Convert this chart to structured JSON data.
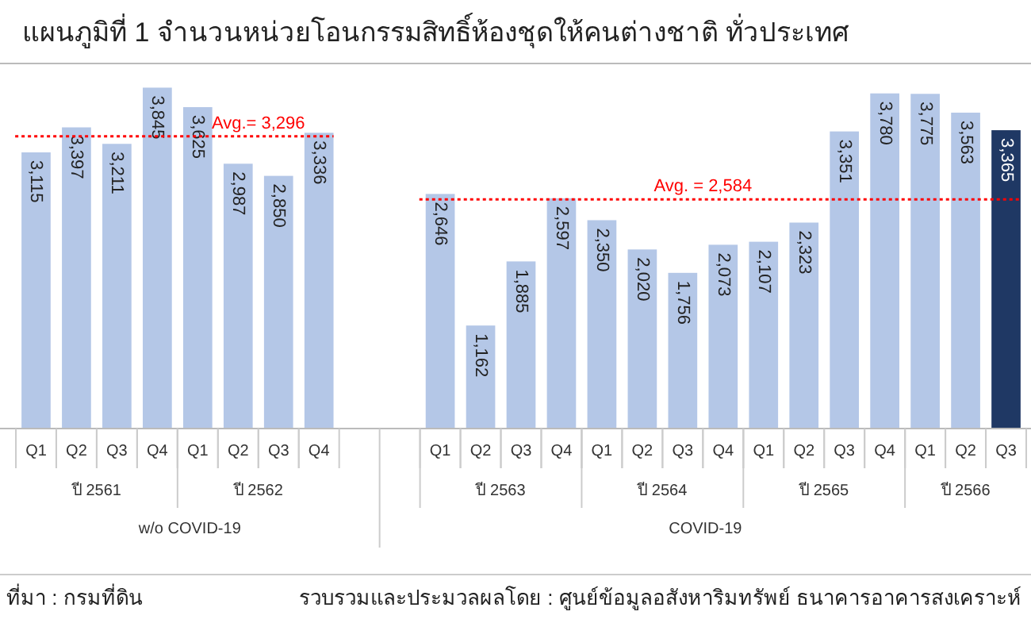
{
  "chart_data": {
    "type": "bar",
    "title": "แผนภูมิที่ 1 จำนวนหน่วยโอนกรรมสิทธิ์ห้องชุดให้คนต่างชาติ ทั่วประเทศ",
    "categories": [
      "Q1",
      "Q2",
      "Q3",
      "Q4",
      "Q1",
      "Q2",
      "Q3",
      "Q4",
      null,
      null,
      "Q1",
      "Q2",
      "Q3",
      "Q4",
      "Q1",
      "Q2",
      "Q3",
      "Q4",
      "Q1",
      "Q2",
      "Q3",
      "Q4",
      "Q1",
      "Q2",
      "Q3"
    ],
    "values": [
      3115,
      3397,
      3211,
      3845,
      3625,
      2987,
      2850,
      3336,
      null,
      null,
      2646,
      1162,
      1885,
      2597,
      2350,
      2020,
      1756,
      2073,
      2107,
      2323,
      3351,
      3780,
      3775,
      3563,
      3365
    ],
    "colors": [
      "#b4c7e7",
      "#b4c7e7",
      "#b4c7e7",
      "#b4c7e7",
      "#b4c7e7",
      "#b4c7e7",
      "#b4c7e7",
      "#b4c7e7",
      null,
      null,
      "#b4c7e7",
      "#b4c7e7",
      "#b4c7e7",
      "#b4c7e7",
      "#b4c7e7",
      "#b4c7e7",
      "#b4c7e7",
      "#b4c7e7",
      "#b4c7e7",
      "#b4c7e7",
      "#b4c7e7",
      "#b4c7e7",
      "#b4c7e7",
      "#b4c7e7",
      "#1f3864"
    ],
    "value_labels": [
      "3,115",
      "3,397",
      "3,211",
      "3,845",
      "3,625",
      "2,987",
      "2,850",
      "3,336",
      null,
      null,
      "2,646",
      "1,162",
      "1,885",
      "2,597",
      "2,350",
      "2,020",
      "1,756",
      "2,073",
      "2,107",
      "2,323",
      "3,351",
      "3,780",
      "3,775",
      "3,563",
      "3,365"
    ],
    "ref_lines": [
      {
        "axis": "y",
        "value": 3296,
        "label": "Avg.= 3,296",
        "color": "#ff0000",
        "line_style": "dotted"
      },
      {
        "axis": "y",
        "value": 2584,
        "label": "Avg. = 2,584",
        "color": "#ff0000",
        "line_style": "dotted"
      }
    ],
    "annotations": [
      "ปี 2561",
      "ปี 2562",
      "ปี 2563",
      "ปี 2564",
      "ปี 2565",
      "ปี 2566",
      "w/o COVID-19",
      "COVID-19",
      "ที่มา : กรมที่ดิน",
      "รวบรวมและประมวลผลโดย : ศูนย์ข้อมูลอสังหาริมทรัพย์ ธนาคารอาคารสงเคราะห์"
    ]
  }
}
